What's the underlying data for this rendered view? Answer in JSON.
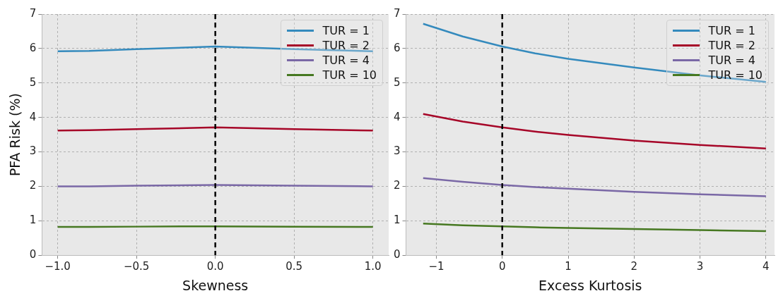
{
  "chart_data": [
    {
      "type": "line",
      "xlabel": "Skewness",
      "ylabel": "PFA Risk (%)",
      "xlim": [
        -1.1,
        1.1
      ],
      "xticks": [
        {
          "value": -1,
          "label": "−1.0"
        },
        {
          "value": -0.5,
          "label": "−0.5"
        },
        {
          "value": 0,
          "label": "0.0"
        },
        {
          "value": 0.5,
          "label": "0.5"
        },
        {
          "value": 1,
          "label": "1.0"
        }
      ],
      "ylim": [
        0,
        7
      ],
      "yticks": [
        0,
        1,
        2,
        3,
        4,
        5,
        6,
        7
      ],
      "x": [
        -1,
        -0.8,
        -0.5,
        0,
        0.5,
        1
      ],
      "series": [
        {
          "name": "TUR = 1",
          "color": "#348abd",
          "values": [
            5.92,
            5.93,
            5.98,
            6.06,
            5.98,
            5.92
          ]
        },
        {
          "name": "TUR = 2",
          "color": "#a60628",
          "values": [
            3.62,
            3.63,
            3.66,
            3.71,
            3.66,
            3.62
          ]
        },
        {
          "name": "TUR = 4",
          "color": "#7a68a6",
          "values": [
            2.0,
            2.0,
            2.02,
            2.04,
            2.02,
            2.0
          ]
        },
        {
          "name": "TUR = 10",
          "color": "#467821",
          "values": [
            0.82,
            0.82,
            0.83,
            0.84,
            0.83,
            0.82
          ]
        }
      ],
      "ref_lines": [
        {
          "axis": "x",
          "value": 0,
          "color": "#000000",
          "line_style": "dashed"
        }
      ],
      "grid": true,
      "legend": "top right"
    },
    {
      "type": "line",
      "xlabel": "Excess Kurtosis",
      "xlim": [
        -1.46,
        4.13
      ],
      "xticks": [
        {
          "value": -1,
          "label": "−1"
        },
        0,
        1,
        2,
        3,
        4
      ],
      "ylim": [
        0,
        7
      ],
      "yticks": [
        0,
        1,
        2,
        3,
        4,
        5,
        6,
        7
      ],
      "x": [
        -1.2,
        -0.6,
        0,
        0.5,
        1,
        2,
        3,
        4
      ],
      "series": [
        {
          "name": "TUR = 1",
          "color": "#348abd",
          "values": [
            6.72,
            6.35,
            6.06,
            5.86,
            5.7,
            5.45,
            5.22,
            5.03
          ]
        },
        {
          "name": "TUR = 2",
          "color": "#a60628",
          "values": [
            4.1,
            3.88,
            3.71,
            3.59,
            3.49,
            3.33,
            3.2,
            3.1
          ]
        },
        {
          "name": "TUR = 4",
          "color": "#7a68a6",
          "values": [
            2.24,
            2.13,
            2.04,
            1.98,
            1.93,
            1.84,
            1.77,
            1.71
          ]
        },
        {
          "name": "TUR = 10",
          "color": "#467821",
          "values": [
            0.92,
            0.87,
            0.84,
            0.81,
            0.79,
            0.76,
            0.73,
            0.7
          ]
        }
      ],
      "ref_lines": [
        {
          "axis": "x",
          "value": 0,
          "color": "#000000",
          "line_style": "dashed"
        }
      ],
      "grid": true,
      "legend": "top right"
    }
  ]
}
